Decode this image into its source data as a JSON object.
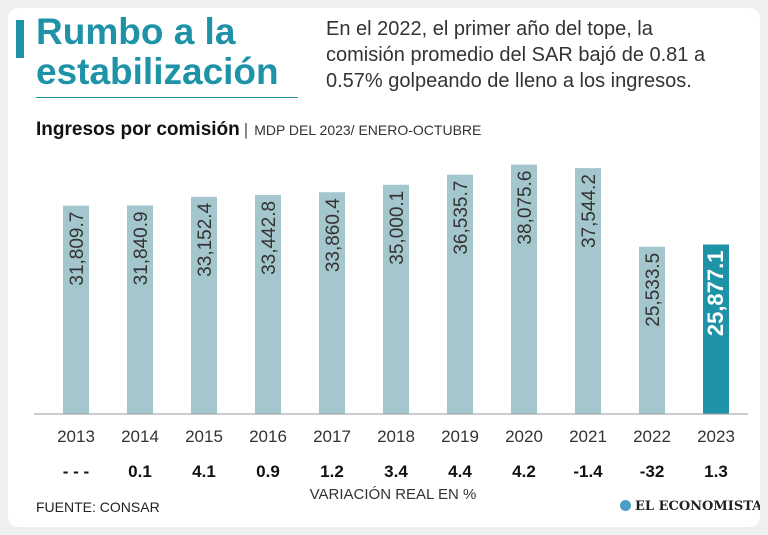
{
  "header": {
    "title_line1": "Rumbo a la",
    "title_line2": "estabilización",
    "subtitle_lines": [
      "En el 2022, el primer año del tope, la",
      "comisión promedio del SAR bajó de 0.81 a",
      "0.57% golpeando de lleno a los ingresos."
    ]
  },
  "colors": {
    "accent": "#1e93a8",
    "bar": "#a4c6cd",
    "bar_highlight": "#1e93a8",
    "background": "#ffffff"
  },
  "chart_data": {
    "type": "bar",
    "title": "Ingresos por comisión",
    "separator": "|",
    "subtitle": "MDP DEL 2023/ ENERO-OCTUBRE",
    "categories": [
      "2013",
      "2014",
      "2015",
      "2016",
      "2017",
      "2018",
      "2019",
      "2020",
      "2021",
      "2022",
      "2023"
    ],
    "values": [
      31809.7,
      31840.9,
      33152.4,
      33442.8,
      33860.4,
      35000.1,
      36535.7,
      38075.6,
      37544.2,
      25533.5,
      25877.1
    ],
    "value_labels": [
      "31,809.7",
      "31,840.9",
      "33,152.4",
      "33,442.8",
      "33,860.4",
      "35,000.1",
      "36,535.7",
      "38,075.6",
      "37,544.2",
      "25,533.5",
      "25,877.1"
    ],
    "highlight_index": 10,
    "variation_labels": [
      "- - -",
      "0.1",
      "4.1",
      "0.9",
      "1.2",
      "3.4",
      "4.4",
      "4.2",
      "-1.4",
      "-32",
      "1.3"
    ],
    "variation_caption": "VARIACIÓN REAL EN %",
    "ylim": [
      0,
      40000
    ]
  },
  "footer": {
    "source": "FUENTE: CONSAR",
    "brand": "EL ECONOMISTA",
    "brand_icon": "economista-logo-icon"
  }
}
